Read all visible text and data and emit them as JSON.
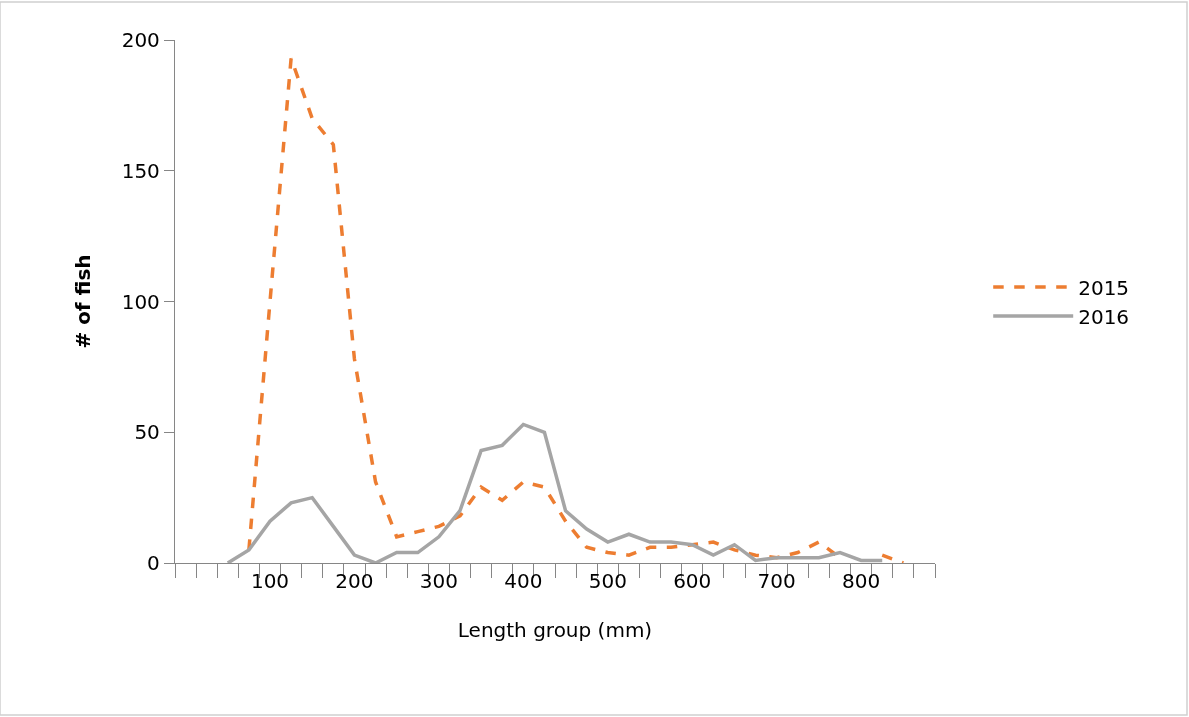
{
  "chart_data": {
    "type": "line",
    "xlabel": "Length group (mm)",
    "ylabel": "# of fish",
    "categories": [
      null,
      null,
      null,
      null,
      "100",
      null,
      null,
      null,
      "200",
      null,
      null,
      null,
      "300",
      null,
      null,
      null,
      "400",
      null,
      null,
      null,
      "500",
      null,
      null,
      null,
      "600",
      null,
      null,
      null,
      "700",
      null,
      null,
      null,
      "800",
      null,
      null,
      null
    ],
    "series": [
      {
        "name": "2015",
        "color": "#ed7d31",
        "line_style": "dashed",
        "values": [
          null,
          null,
          null,
          5,
          100,
          193,
          170,
          160,
          78,
          31,
          10,
          12,
          14,
          18,
          29,
          24,
          31,
          29,
          16,
          6,
          4,
          3,
          6,
          6,
          7,
          8,
          5,
          3,
          2,
          4,
          8,
          2,
          null,
          3,
          0,
          null
        ]
      },
      {
        "name": "2016",
        "color": "#a5a5a5",
        "line_style": "solid",
        "values": [
          null,
          null,
          0,
          5,
          16,
          23,
          25,
          14,
          3,
          0,
          4,
          4,
          10,
          20,
          43,
          45,
          53,
          50,
          20,
          13,
          8,
          11,
          8,
          8,
          7,
          3,
          7,
          1,
          2,
          2,
          2,
          4,
          1,
          1,
          null,
          null
        ]
      }
    ],
    "ylim": [
      0,
      200
    ],
    "yticks": [
      0,
      50,
      100,
      150,
      200
    ],
    "legend": "right",
    "marker": "none"
  }
}
